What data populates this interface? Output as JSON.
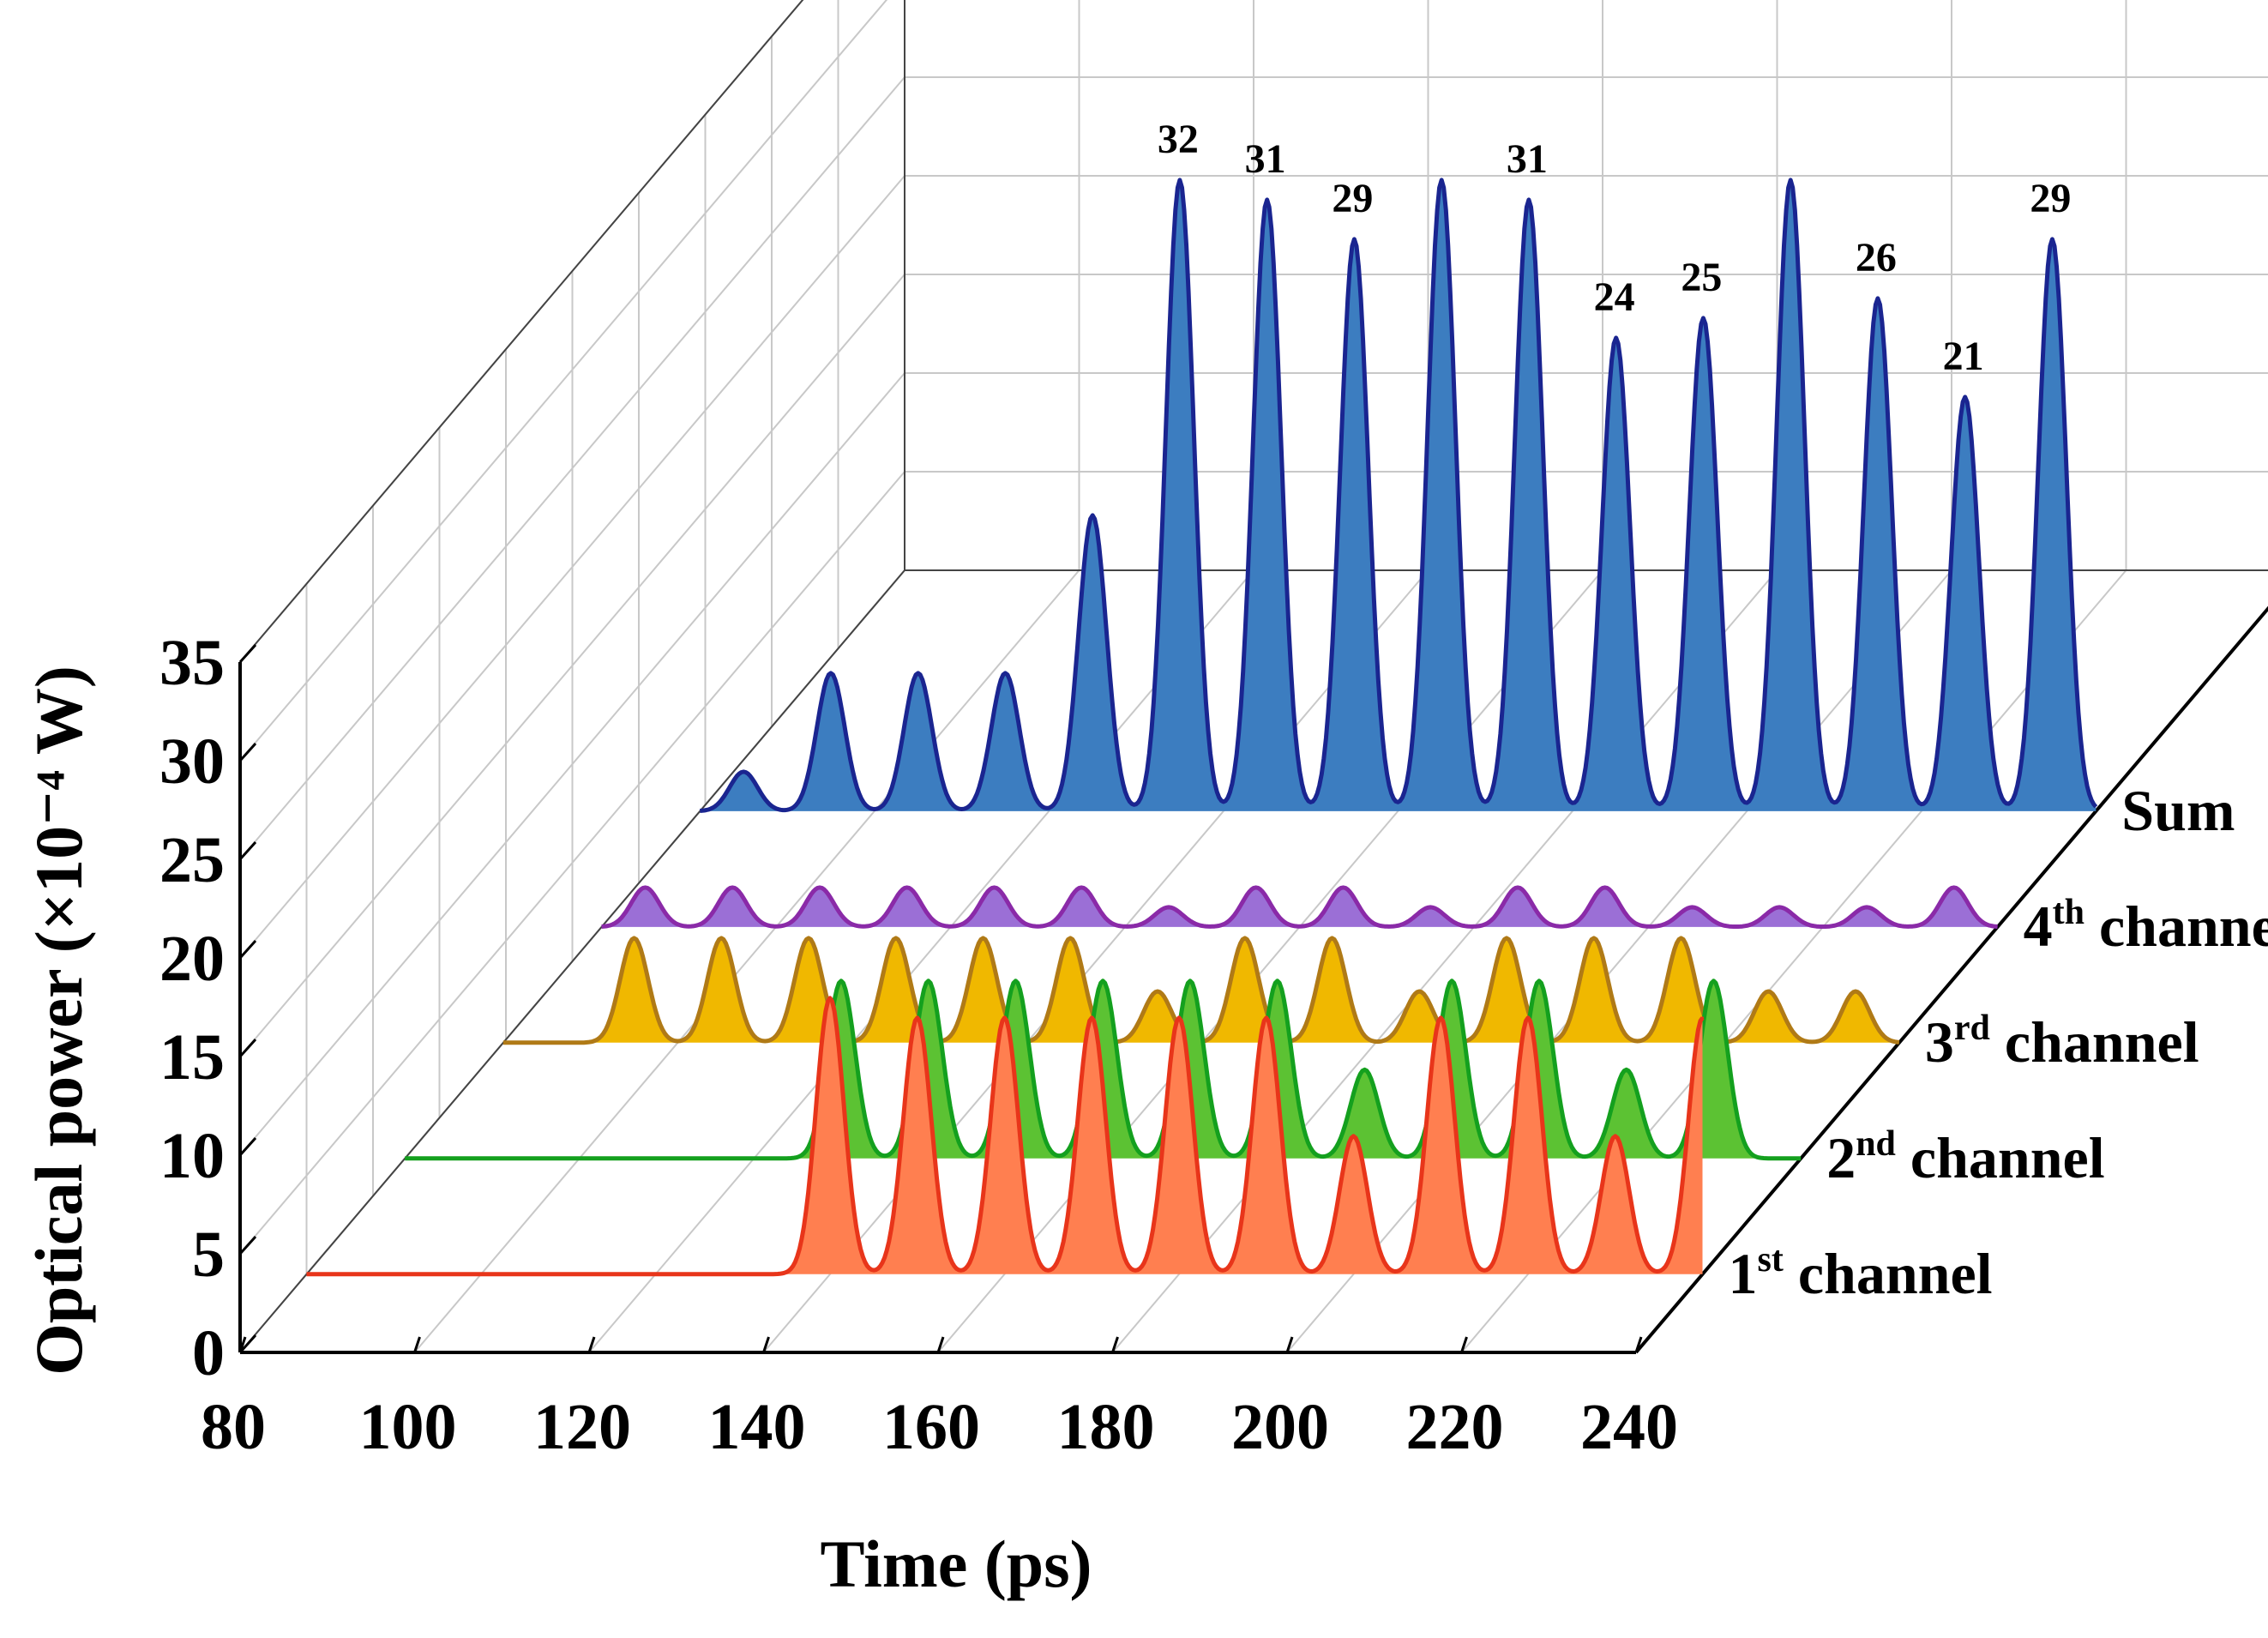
{
  "chart_data": {
    "type": "area",
    "subtype": "3d-waterfall",
    "xlabel": "Time (ps)",
    "ylabel": "Optical power (×10⁻⁴ W)",
    "xlim": [
      80,
      240
    ],
    "ylim": [
      0,
      35
    ],
    "xticks": [
      "80",
      "100",
      "120",
      "140",
      "160",
      "180",
      "200",
      "220",
      "240"
    ],
    "yticks": [
      "0",
      "5",
      "10",
      "15",
      "20",
      "25",
      "30",
      "35"
    ],
    "series": [
      {
        "name": "1st channel",
        "base": "1",
        "sup": "st",
        "suffix": " channel",
        "color": "#ff7f50",
        "line": "#e8351a",
        "x_start": 80,
        "x_end": 240,
        "peak_x": [
          140,
          150,
          160,
          170,
          180,
          190,
          200,
          210,
          220,
          230,
          240
        ],
        "peak_y": [
          14,
          13,
          13,
          13,
          13,
          13,
          7,
          13,
          13,
          7,
          13
        ]
      },
      {
        "name": "2nd channel",
        "base": "2",
        "sup": "nd",
        "suffix": " channel",
        "color": "#5cc233",
        "line": "#14a01e",
        "x_start": 80,
        "x_end": 240,
        "peak_x": [
          130,
          140,
          150,
          160,
          170,
          180,
          190,
          200,
          210,
          220,
          230
        ],
        "peak_y": [
          9,
          9,
          9,
          9,
          9,
          9,
          4.5,
          9,
          9,
          4.5,
          9
        ]
      },
      {
        "name": "3rd channel",
        "base": "3",
        "sup": "rd",
        "suffix": " channel",
        "color": "#f0b800",
        "line": "#b07a16",
        "x_start": 80,
        "x_end": 240,
        "peak_x": [
          95,
          105,
          115,
          125,
          135,
          145,
          155,
          165,
          175,
          185,
          195,
          205,
          215,
          225,
          235
        ],
        "peak_y": [
          5.3,
          5.3,
          5.3,
          5.3,
          5.3,
          5.3,
          2.6,
          5.3,
          5.3,
          2.6,
          5.3,
          5.3,
          5.3,
          2.6,
          2.6
        ]
      },
      {
        "name": "4th channel",
        "base": "4",
        "sup": "th",
        "suffix": " channel",
        "color": "#9b6fd6",
        "line": "#8a2aa8",
        "x_start": 80,
        "x_end": 240,
        "peak_x": [
          85,
          95,
          105,
          115,
          125,
          135,
          145,
          155,
          165,
          175,
          185,
          195,
          205,
          215,
          225,
          235
        ],
        "peak_y": [
          2,
          2,
          2,
          2,
          2,
          2,
          1,
          2,
          2,
          1,
          2,
          2,
          1,
          1,
          1,
          2
        ]
      },
      {
        "name": "Sum",
        "base": "Sum",
        "sup": "",
        "suffix": "",
        "color": "#3c7dc0",
        "line": "#1a2590",
        "x_start": 80,
        "x_end": 240,
        "peak_x": [
          85,
          95,
          105,
          115,
          125,
          135,
          145,
          155,
          165,
          175,
          185,
          195,
          205,
          215,
          225,
          235
        ],
        "peak_y": [
          2,
          7,
          7,
          7,
          15,
          32,
          31,
          29,
          32,
          31,
          24,
          25,
          32,
          26,
          21,
          29
        ]
      }
    ],
    "annotations": [
      {
        "text": "32",
        "x": 135
      },
      {
        "text": "31",
        "x": 145
      },
      {
        "text": "29",
        "x": 155
      },
      {
        "text": "31",
        "x": 175
      },
      {
        "text": "24",
        "x": 185
      },
      {
        "text": "25",
        "x": 195
      },
      {
        "text": "26",
        "x": 215
      },
      {
        "text": "21",
        "x": 225
      },
      {
        "text": "29",
        "x": 235
      }
    ]
  }
}
